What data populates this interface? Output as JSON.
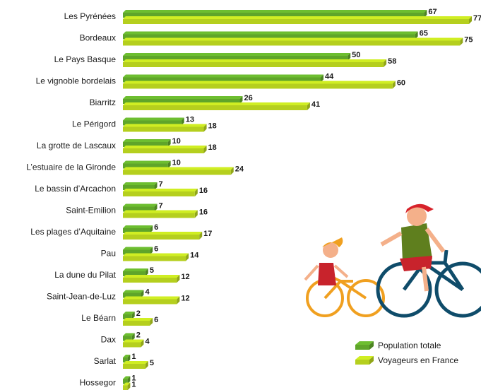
{
  "chart_data": {
    "type": "bar",
    "orientation": "horizontal",
    "categories": [
      "Les Pyrénées",
      "Bordeaux",
      "Le Pays Basque",
      "Le vignoble bordelais",
      "Biarritz",
      "Le Périgord",
      "La grotte de Lascaux",
      "L’estuaire de la Gironde",
      "Le bassin d’Arcachon",
      "Saint-Emilion",
      "Les plages d’Aquitaine",
      "Pau",
      "La dune du Pilat",
      "Saint-Jean-de-Luz",
      "Le Béarn",
      "Dax",
      "Sarlat",
      "Hossegor"
    ],
    "series": [
      {
        "name": "Population totale",
        "color": "#5fa52a",
        "label_color": "#4a8a1f",
        "values": [
          67,
          65,
          50,
          44,
          26,
          13,
          10,
          10,
          7,
          7,
          6,
          6,
          5,
          4,
          2,
          2,
          1,
          1
        ]
      },
      {
        "name": "Voyageurs en France",
        "color": "#b5cf1e",
        "label_color": "#9cb514",
        "values": [
          77,
          75,
          58,
          60,
          41,
          18,
          18,
          24,
          16,
          16,
          17,
          14,
          12,
          12,
          6,
          4,
          5,
          1
        ]
      }
    ]
  }
}
